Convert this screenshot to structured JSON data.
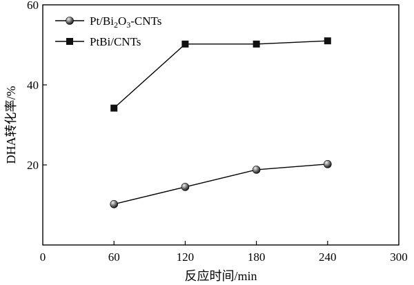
{
  "chart_data": {
    "type": "line",
    "xlabel": "反应时间/min",
    "ylabel": "DHA转化率/%",
    "x": [
      60,
      120,
      180,
      240
    ],
    "xlim": [
      0,
      300
    ],
    "ylim": [
      0,
      60
    ],
    "x_ticks": [
      "0",
      "60",
      "120",
      "180",
      "240",
      "300"
    ],
    "y_ticks": [
      "20",
      "40",
      "60"
    ],
    "grid": false,
    "legend_position": "top-left",
    "series": [
      {
        "name": "Pt/Bi₂O₃-CNTs",
        "name_parts": {
          "base": "Pt/Bi",
          "sub1": "2",
          "mid": "O",
          "sub2": "3",
          "tail": "-CNTs"
        },
        "marker": "sphere",
        "values": [
          10.2,
          14.5,
          18.8,
          20.2
        ]
      },
      {
        "name": "PtBi/CNTs",
        "marker": "square",
        "values": [
          34.2,
          50.2,
          50.2,
          51.0
        ]
      }
    ],
    "colors": {
      "line": "#000000",
      "marker_square": "#111111",
      "sphere_light": "#e8e8e8",
      "sphere_dark": "#1a1a1a"
    }
  }
}
